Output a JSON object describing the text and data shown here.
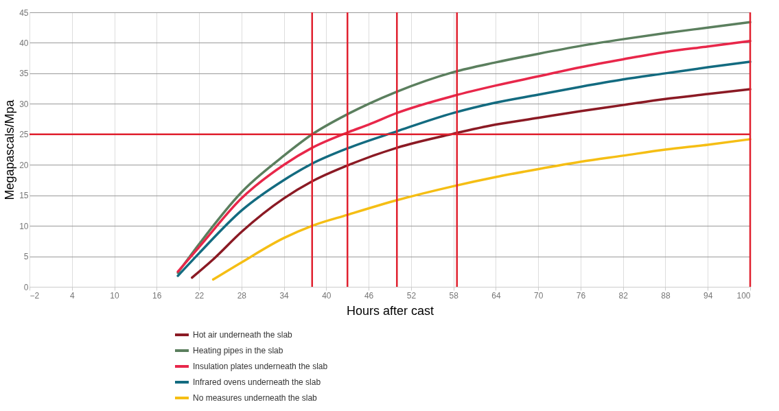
{
  "chart_data": {
    "type": "line",
    "xlabel": "Hours after cast",
    "ylabel": "Megapascals/Mpa",
    "xlim": [
      -2,
      100
    ],
    "xticks": [
      -2,
      4,
      10,
      16,
      22,
      28,
      34,
      40,
      46,
      52,
      58,
      64,
      70,
      76,
      82,
      88,
      94,
      100
    ],
    "ylim": [
      0,
      45
    ],
    "yticks": [
      0,
      5,
      10,
      15,
      20,
      25,
      30,
      35,
      40,
      45
    ],
    "grid": true,
    "legend": "bottom",
    "marker": "none",
    "line_style": "solid",
    "series": [
      {
        "name": "Hot air underneath the slab",
        "color": "#8b1a24",
        "x": [
          21,
          24,
          28,
          34,
          38,
          43,
          50,
          58,
          64,
          70,
          76,
          82,
          88,
          94,
          100
        ],
        "values": [
          1.5,
          4.5,
          9,
          14.5,
          17.3,
          19.9,
          22.8,
          25.1,
          26.6,
          27.7,
          28.8,
          29.8,
          30.8,
          31.6,
          32.4
        ]
      },
      {
        "name": "Heating pipes in the slab",
        "color": "#5b7f5e",
        "x": [
          19,
          22,
          28,
          34,
          38,
          43,
          46,
          50,
          58,
          64,
          70,
          76,
          82,
          88,
          94,
          100
        ],
        "values": [
          2.3,
          7,
          15.5,
          21.5,
          25,
          28.3,
          30,
          32,
          35.2,
          36.8,
          38.2,
          39.5,
          40.6,
          41.6,
          42.5,
          43.4
        ]
      },
      {
        "name": "Insulation plates underneath the slab",
        "color": "#e8274a",
        "x": [
          19,
          22,
          28,
          34,
          38,
          43,
          46,
          50,
          58,
          64,
          70,
          76,
          82,
          88,
          94,
          100
        ],
        "values": [
          2.5,
          6.5,
          14.5,
          20,
          22.8,
          25.3,
          26.6,
          28.5,
          31.3,
          33,
          34.5,
          36,
          37.3,
          38.5,
          39.4,
          40.3
        ]
      },
      {
        "name": "Infrared ovens underneath the slab",
        "color": "#136b80",
        "x": [
          19,
          22,
          28,
          34,
          38,
          43,
          50,
          58,
          64,
          70,
          76,
          82,
          88,
          94,
          100
        ],
        "values": [
          1.8,
          5.5,
          12.5,
          17.5,
          20.2,
          22.7,
          25.5,
          28.5,
          30.2,
          31.5,
          32.8,
          34,
          35,
          36,
          36.9
        ]
      },
      {
        "name": "No measures underneath the slab",
        "color": "#f5be14",
        "x": [
          24,
          28,
          34,
          38,
          43,
          50,
          58,
          64,
          70,
          76,
          82,
          88,
          94,
          100
        ],
        "values": [
          1.2,
          4,
          8,
          10,
          11.8,
          14.2,
          16.5,
          18,
          19.3,
          20.5,
          21.5,
          22.5,
          23.3,
          24.2
        ]
      }
    ],
    "ref_lines": [
      {
        "axis": "y",
        "value": 25,
        "color": "#e0202e"
      },
      {
        "axis": "x",
        "value": 38,
        "color": "#e0202e"
      },
      {
        "axis": "x",
        "value": 43,
        "color": "#e0202e"
      },
      {
        "axis": "x",
        "value": 50,
        "color": "#e0202e"
      },
      {
        "axis": "x",
        "value": 58.5,
        "color": "#e0202e"
      },
      {
        "axis": "x",
        "value": 100,
        "color": "#e0202e"
      }
    ]
  }
}
